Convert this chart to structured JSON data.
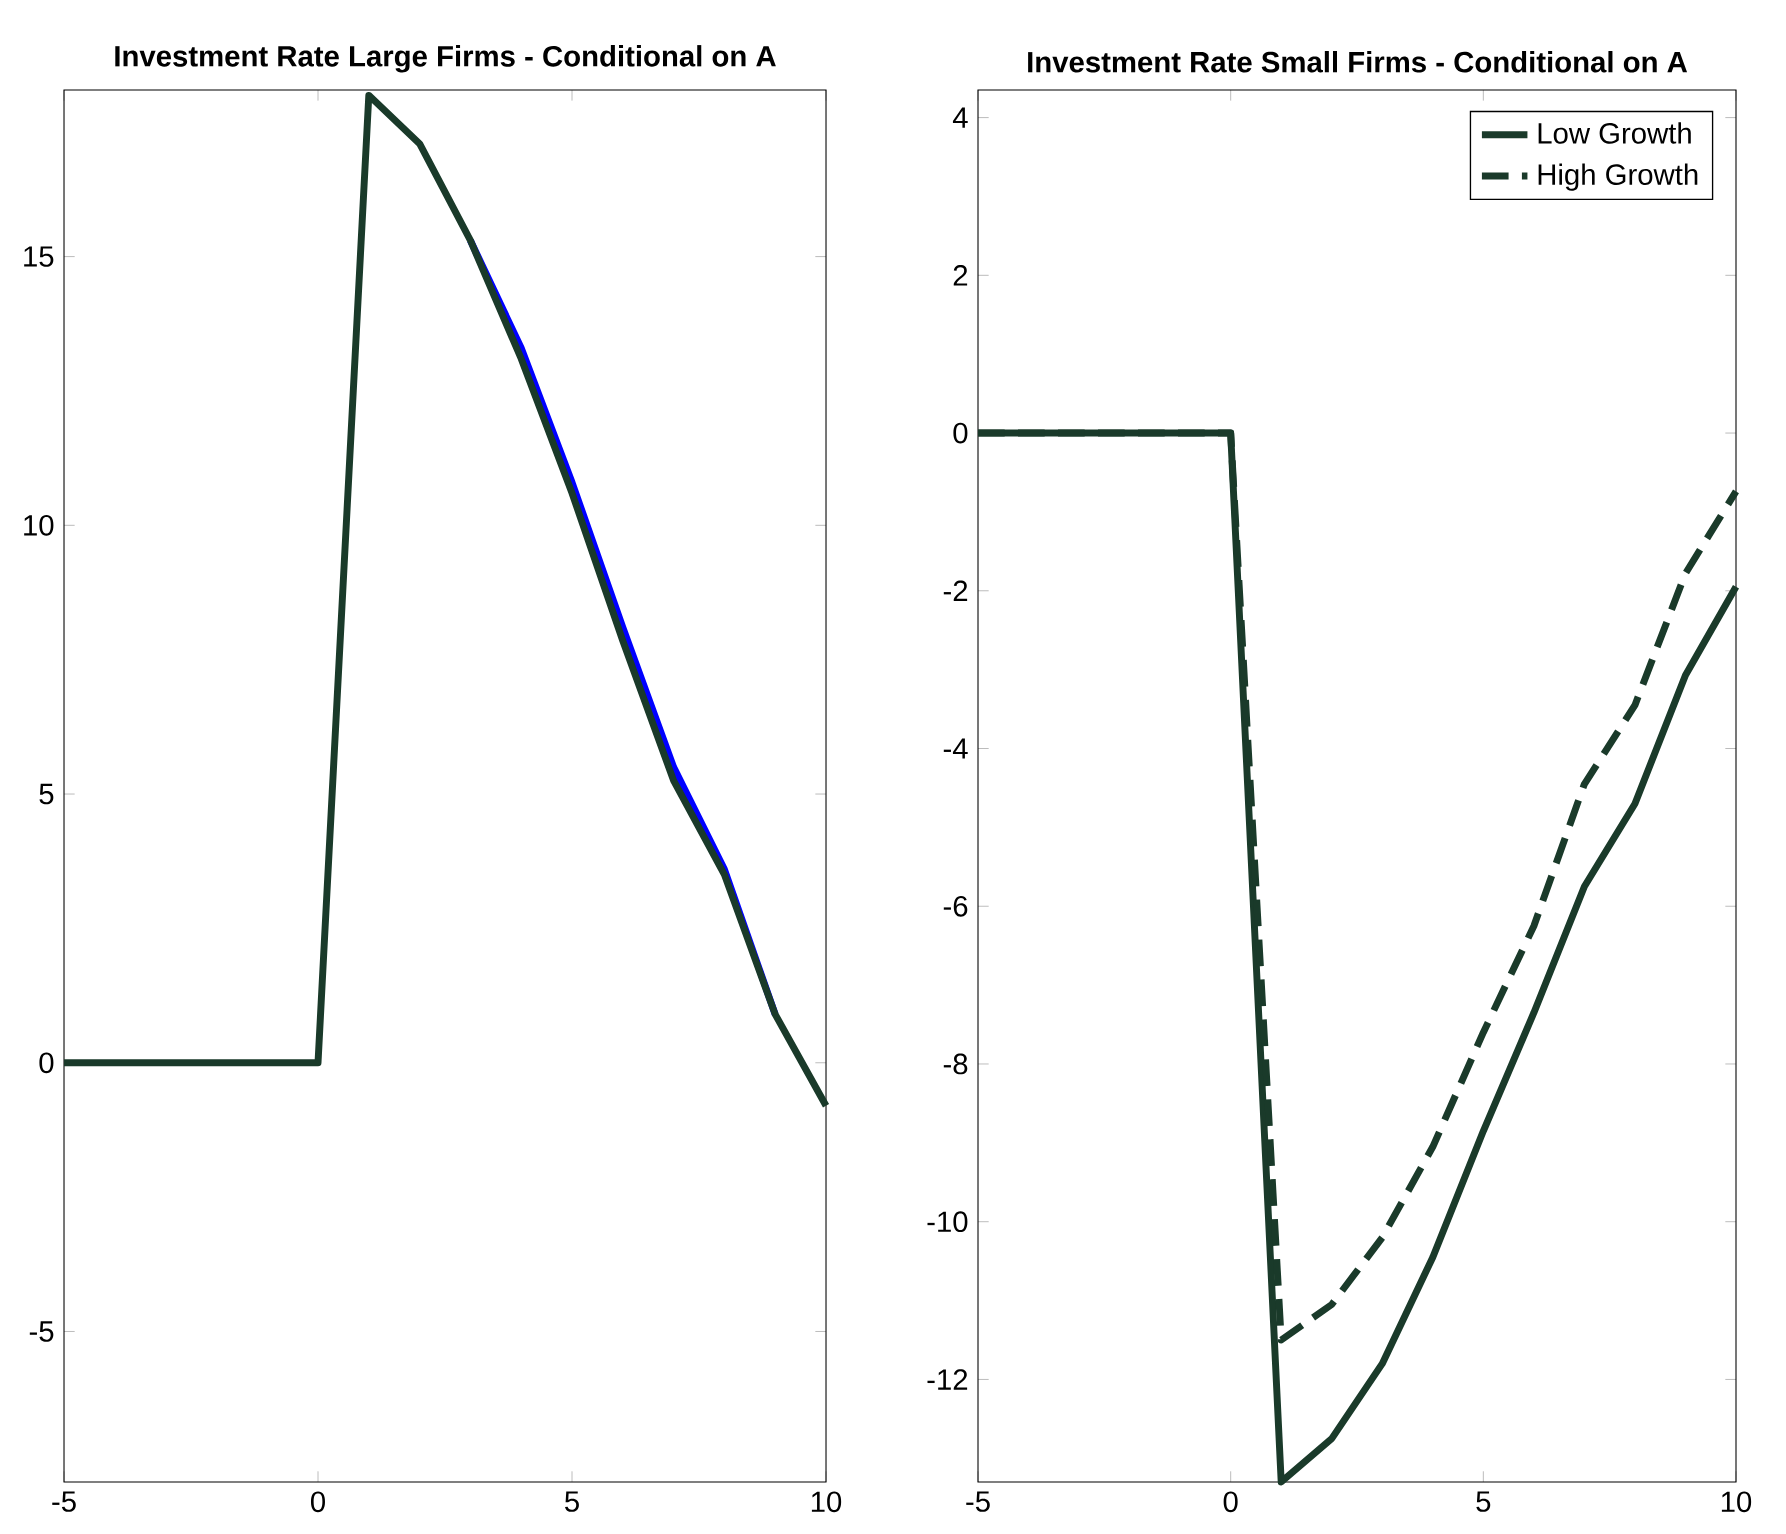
{
  "chart_data": [
    {
      "type": "line",
      "title": "Investment Rate Large Firms - Conditional on A",
      "x": [
        -5,
        -4,
        -3,
        -2,
        -1,
        0,
        1,
        2,
        3,
        4,
        5,
        6,
        7,
        8,
        9,
        10
      ],
      "xlim": [
        -5,
        10
      ],
      "xticks": [
        -5,
        0,
        5,
        10
      ],
      "ylim": [
        -7.8,
        18.1
      ],
      "yticks": [
        -5,
        0,
        5,
        10,
        15
      ],
      "series": [
        {
          "color": "#0000ff",
          "values": [
            null,
            null,
            null,
            null,
            null,
            null,
            null,
            null,
            15.3,
            13.3,
            10.8,
            8.1,
            5.5,
            3.6,
            0.9,
            null
          ]
        },
        {
          "color": "#1a3a2a",
          "values": [
            0,
            0,
            0,
            0,
            0,
            0,
            18.0,
            17.1,
            15.3,
            13.1,
            10.6,
            7.85,
            5.25,
            3.5,
            0.9,
            -0.8
          ]
        }
      ]
    },
    {
      "type": "line",
      "title": "Investment Rate Small Firms - Conditional on A",
      "x": [
        -5,
        -4,
        -3,
        -2,
        -1,
        0,
        1,
        2,
        3,
        4,
        5,
        6,
        7,
        8,
        9,
        10
      ],
      "xlim": [
        -5,
        10
      ],
      "xticks": [
        -5,
        0,
        5,
        10
      ],
      "ylim": [
        -13.3,
        4.35
      ],
      "yticks": [
        -12,
        -10,
        -8,
        -6,
        -4,
        -2,
        0,
        2,
        4
      ],
      "legend": "top right",
      "series": [
        {
          "name": "Low Growth",
          "color": "#1a3a2a",
          "line_style": "solid",
          "values": [
            0,
            0,
            0,
            0,
            0,
            0,
            -13.3,
            -12.75,
            -11.8,
            -10.45,
            -8.85,
            -7.35,
            -5.75,
            -4.7,
            -3.07,
            -1.95
          ]
        },
        {
          "name": "High Growth",
          "color": "#1a3a2a",
          "line_style": "dashed",
          "values": [
            0,
            0,
            0,
            0,
            0,
            0,
            -11.5,
            -11.05,
            -10.2,
            -9.05,
            -7.6,
            -6.25,
            -4.45,
            -3.45,
            -1.78,
            -0.74
          ]
        }
      ]
    }
  ]
}
